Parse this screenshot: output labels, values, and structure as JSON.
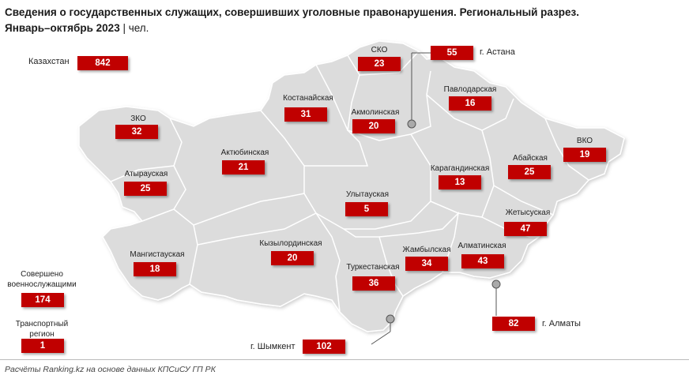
{
  "title": {
    "line1": "Сведения о государственных служащих, совершивших уголовные правонарушения. Региональный разрез.",
    "line2_bold": "Январь–октябрь 2023",
    "line2_unit": " | чел."
  },
  "total": {
    "label": "Казахстан",
    "value": "842"
  },
  "regions": {
    "sko": {
      "label": "СКО",
      "value": "23"
    },
    "astana": {
      "label": "г. Астана",
      "value": "55"
    },
    "pavlodar": {
      "label": "Павлодарская",
      "value": "16"
    },
    "kostanay": {
      "label": "Костанайская",
      "value": "31"
    },
    "akmola": {
      "label": "Акмолинская",
      "value": "20"
    },
    "zko": {
      "label": "ЗКО",
      "value": "32"
    },
    "aktobe": {
      "label": "Актюбинская",
      "value": "21"
    },
    "vko": {
      "label": "ВКО",
      "value": "19"
    },
    "abai": {
      "label": "Абайская",
      "value": "25"
    },
    "karaganda": {
      "label": "Карагандинская",
      "value": "13"
    },
    "atyrau": {
      "label": "Атырауская",
      "value": "25"
    },
    "ulytau": {
      "label": "Улытауская",
      "value": "5"
    },
    "zhetysu": {
      "label": "Жетысуская",
      "value": "47"
    },
    "mangystau": {
      "label": "Мангистауская",
      "value": "18"
    },
    "kyzylorda": {
      "label": "Кызылординская",
      "value": "20"
    },
    "zhambyl": {
      "label": "Жамбылская",
      "value": "34"
    },
    "almaty_obl": {
      "label": "Алматинская",
      "value": "43"
    },
    "turkestan": {
      "label": "Туркестанская",
      "value": "36"
    },
    "almaty": {
      "label": "г. Алматы",
      "value": "82"
    },
    "shymkent": {
      "label": "г. Шымкент",
      "value": "102"
    }
  },
  "military": {
    "label": "Совершено военнослужащими",
    "value": "174"
  },
  "transport": {
    "label": "Транспортный регион",
    "value": "1"
  },
  "footer": "Расчёты Ranking.kz на основе данных КПСиСУ ГП РК",
  "colors": {
    "accent": "#c00000",
    "land": "#dcdcdc",
    "border": "#ffffff"
  }
}
